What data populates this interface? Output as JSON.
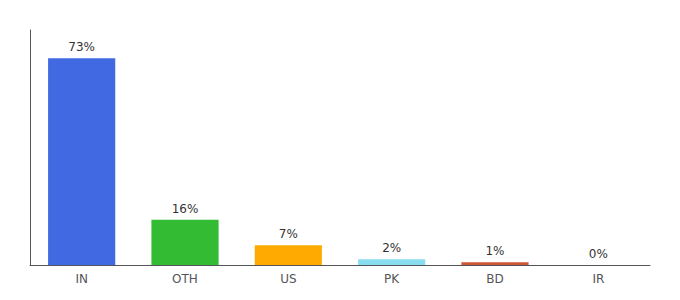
{
  "chart_data": {
    "type": "bar",
    "categories": [
      "IN",
      "OTH",
      "US",
      "PK",
      "BD",
      "IR"
    ],
    "values": [
      73,
      16,
      7,
      2,
      1,
      0
    ],
    "value_labels": [
      "73%",
      "16%",
      "7%",
      "2%",
      "1%",
      "0%"
    ],
    "data_labels": true,
    "colors": [
      "#4169e1",
      "#33bb33",
      "#ffaa00",
      "#88ddee",
      "#cc5533",
      "#cccccc"
    ],
    "ylim": [
      0,
      83
    ],
    "grid": false,
    "tick_labels": "x"
  }
}
